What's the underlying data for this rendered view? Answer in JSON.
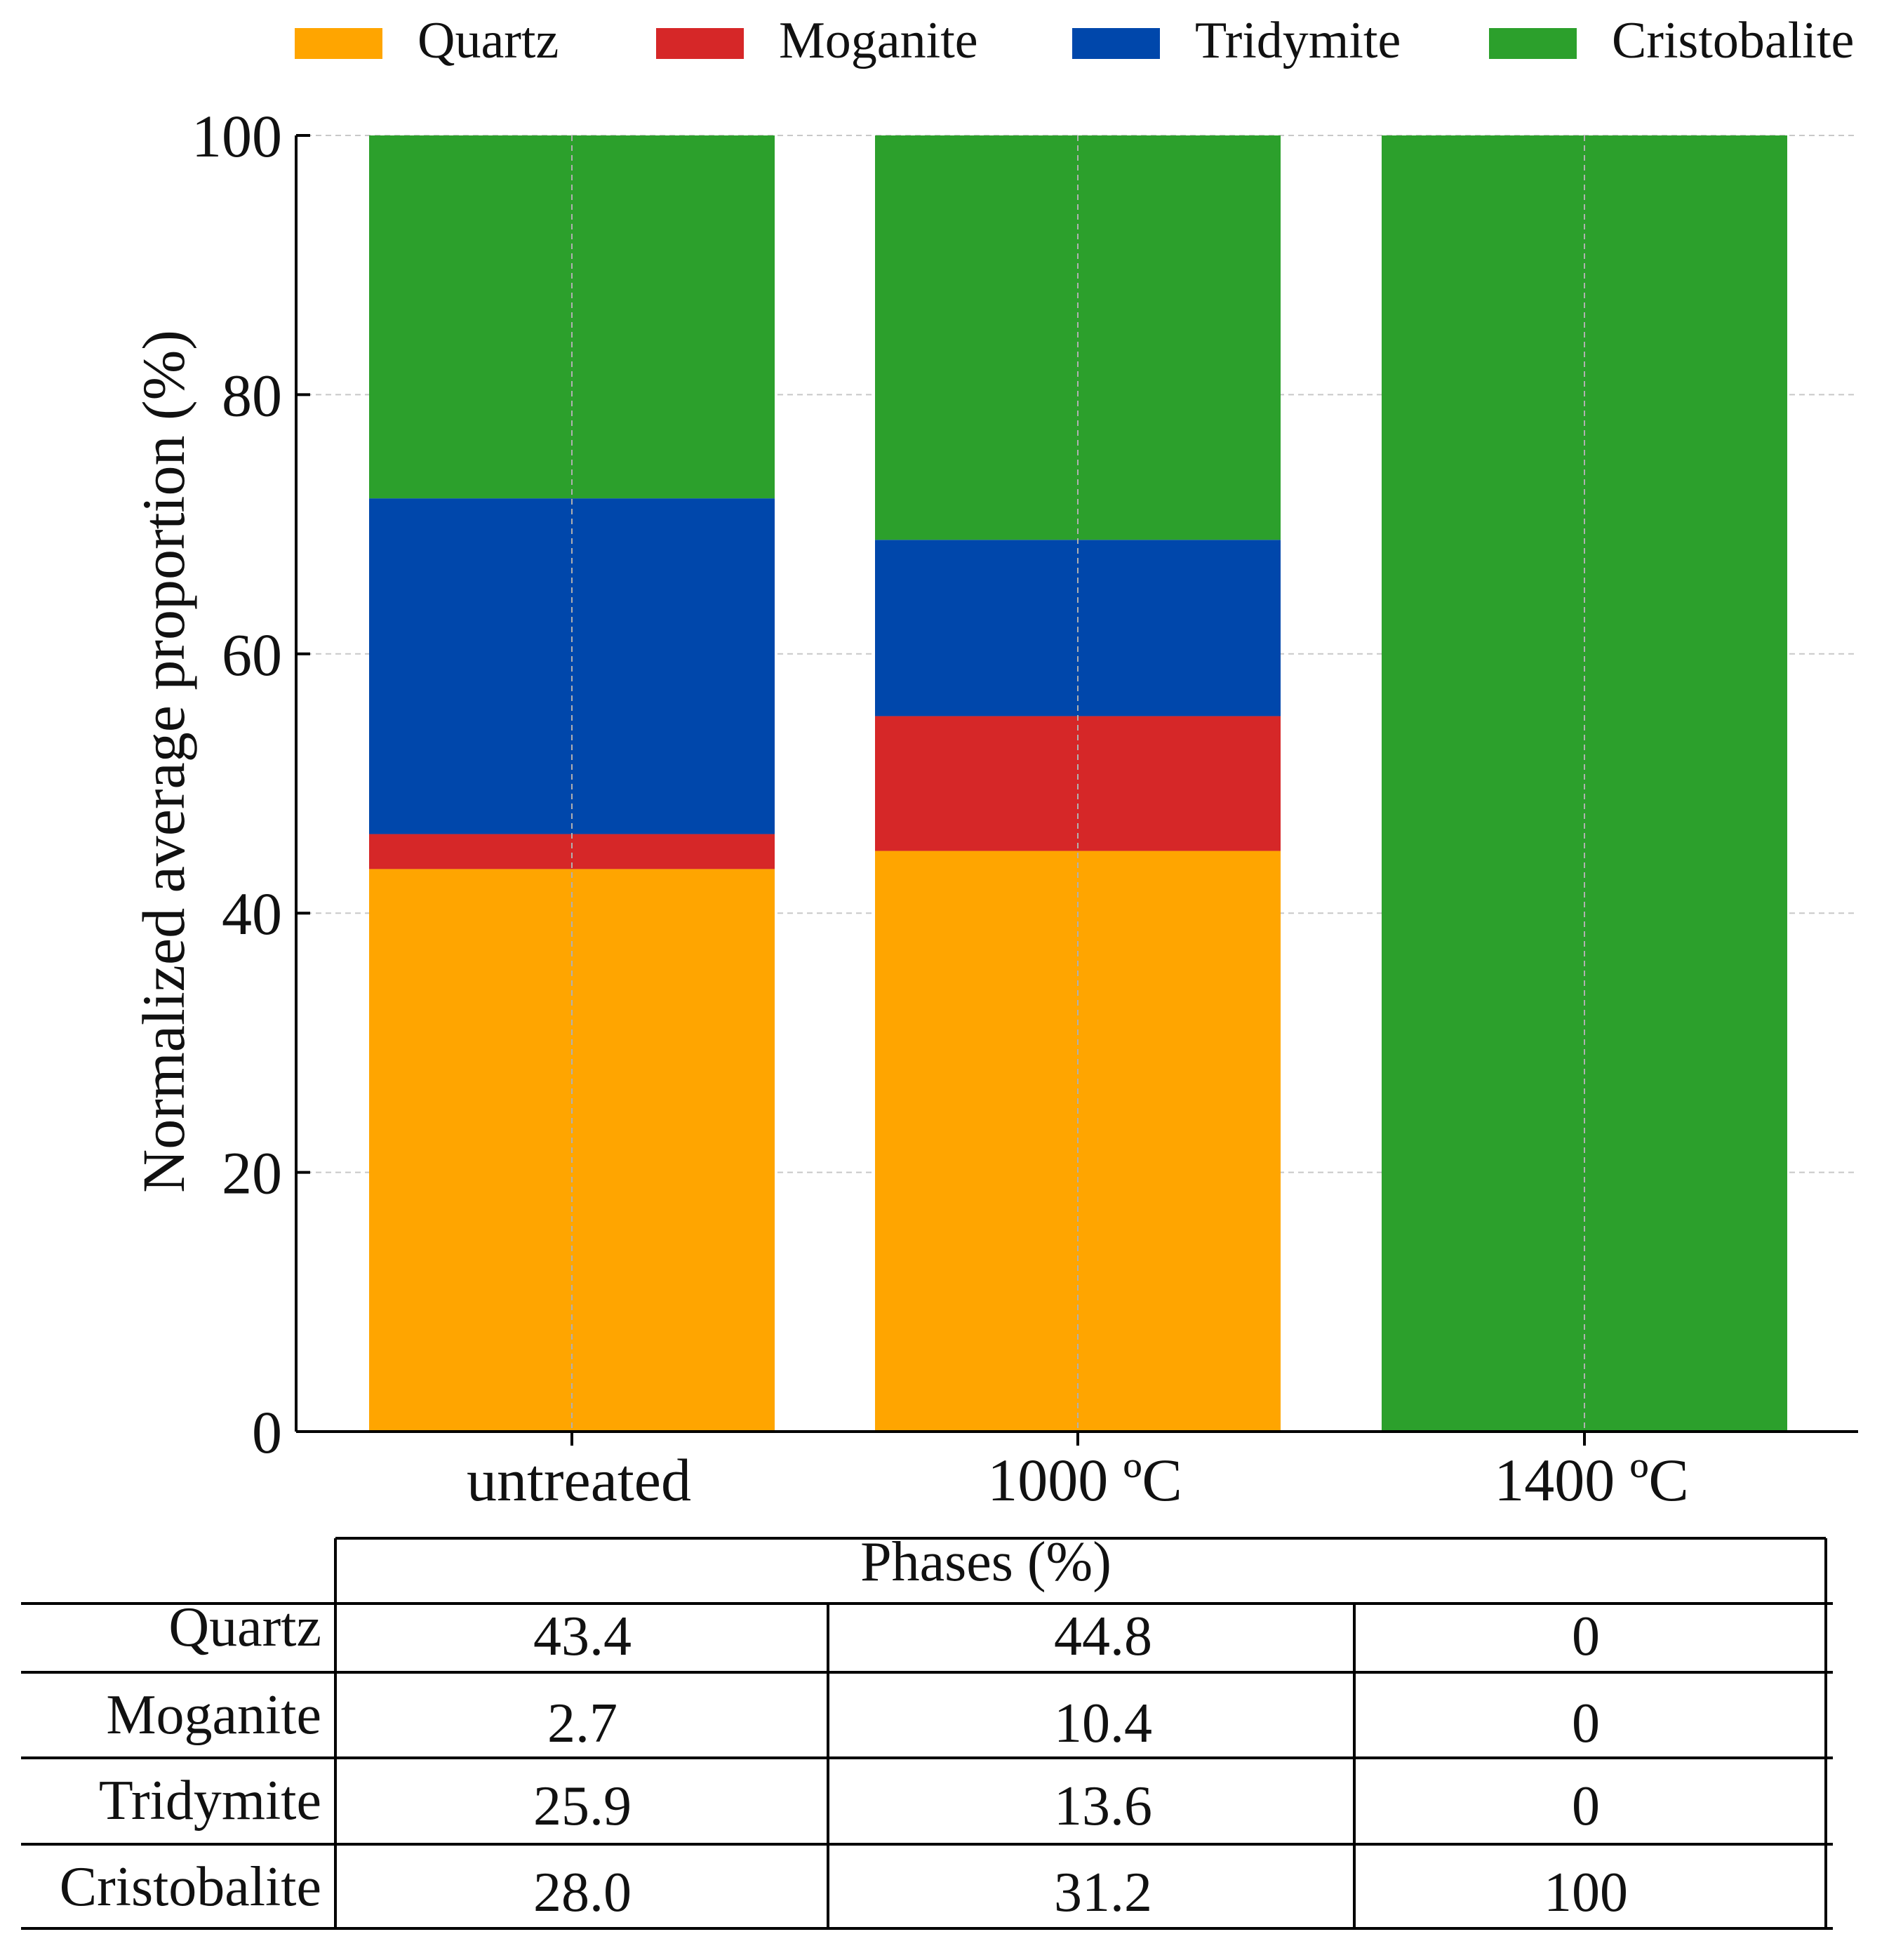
{
  "chart_data": {
    "type": "bar",
    "stacked": true,
    "title": "",
    "xlabel": "",
    "ylabel": "Normalized average proportion (%)",
    "ylim": [
      0,
      100
    ],
    "yticks": [
      0,
      20,
      40,
      60,
      80,
      100
    ],
    "ytick_labels": [
      "0",
      "20",
      "40",
      "60",
      "80",
      "100"
    ],
    "grid": true,
    "legend_position": "top",
    "categories": [
      "untreated",
      "1000 ºC",
      "1400 ºC"
    ],
    "series": [
      {
        "name": "Quartz",
        "color": "#ffa500",
        "values": [
          43.4,
          44.8,
          0
        ]
      },
      {
        "name": "Moganite",
        "color": "#d62728",
        "values": [
          2.7,
          10.4,
          0
        ]
      },
      {
        "name": "Tridymite",
        "color": "#0047ab",
        "values": [
          25.9,
          13.6,
          0
        ]
      },
      {
        "name": "Cristobalite",
        "color": "#2ca02c",
        "values": [
          28.0,
          31.2,
          100
        ]
      }
    ]
  },
  "table": {
    "header": "Phases (%)",
    "rows": [
      {
        "label": "Quartz",
        "cells": [
          "43.4",
          "44.8",
          "0"
        ]
      },
      {
        "label": "Moganite",
        "cells": [
          "2.7",
          "10.4",
          "0"
        ]
      },
      {
        "label": "Tridymite",
        "cells": [
          "25.9",
          "13.6",
          "0"
        ]
      },
      {
        "label": "Cristobalite",
        "cells": [
          "28.0",
          "31.2",
          "100"
        ]
      }
    ]
  }
}
